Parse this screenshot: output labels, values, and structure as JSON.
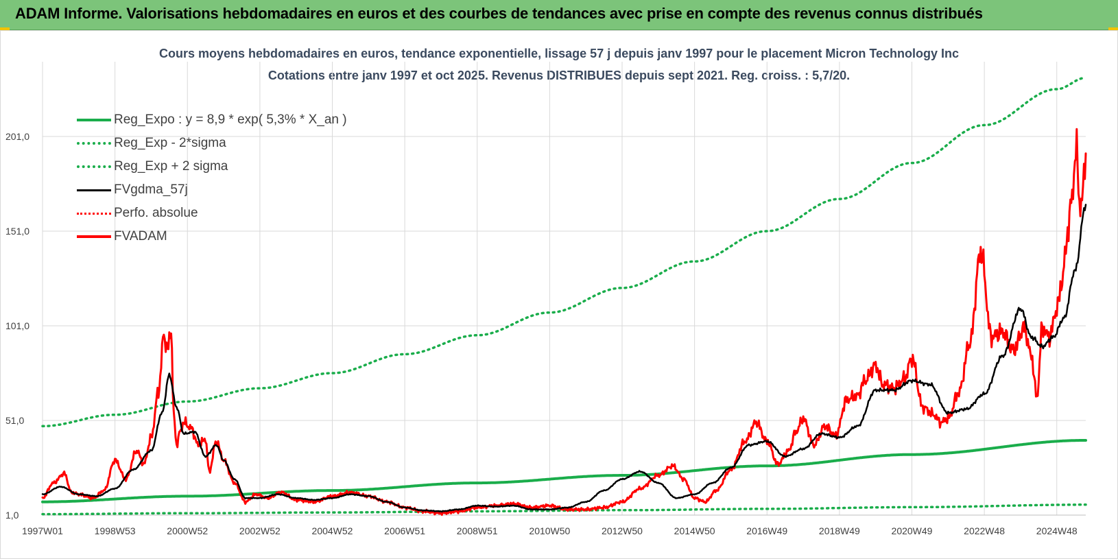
{
  "header": {
    "title": "ADAM Informe. Valorisations hebdomadaires en euros et des courbes de tendances avec prise en compte des revenus connus distribués"
  },
  "colors": {
    "header_bg": "#7cc47a",
    "trend_green": "#1aad4b",
    "series_black": "#000000",
    "series_red": "#ff0000",
    "grid": "#d9d9d9",
    "title": "#3b4a5f"
  },
  "chart_data": {
    "type": "line",
    "title": "Cours moyens hebdomadaires en euros, tendance exponentielle, lissage 57 j depuis janv 1997 pour le placement Micron Technology Inc",
    "subtitle": "Cotations entre janv 1997 et oct 2025. Revenus DISTRIBUES depuis sept 2021. Reg. croiss. : 5,7/20.",
    "xlabel": "",
    "ylabel": "",
    "x_range": [
      1997.0,
      2025.8
    ],
    "ylim": [
      1.0,
      232.0
    ],
    "y_ticks": [
      "1,0",
      "51,0",
      "101,0",
      "151,0",
      "201,0"
    ],
    "y_tick_values": [
      1,
      51,
      101,
      151,
      201
    ],
    "x_ticks": [
      "1997W01",
      "1998W53",
      "2000W52",
      "2002W52",
      "2004W52",
      "2006W51",
      "2008W51",
      "2010W50",
      "2012W50",
      "2014W50",
      "2016W49",
      "2018W49",
      "2020W49",
      "2022W48",
      "2024W48"
    ],
    "x_tick_values": [
      1997.0,
      1999.0,
      2001.0,
      2003.0,
      2005.0,
      2007.0,
      2009.0,
      2011.0,
      2013.0,
      2015.0,
      2017.0,
      2019.0,
      2021.0,
      2023.0,
      2025.0
    ],
    "grid": true,
    "legend_position": "top-left",
    "legend": [
      {
        "label": "Reg_Expo : y = 8,9 * exp( 5,3% *  X_an )",
        "color": "#1aad4b",
        "style": "solid"
      },
      {
        "label": "Reg_Exp - 2*sigma",
        "color": "#1aad4b",
        "style": "dotted"
      },
      {
        "label": "Reg_Exp + 2 sigma",
        "color": "#1aad4b",
        "style": "dotted"
      },
      {
        "label": "FVgdma_57j",
        "color": "#000000",
        "style": "solid"
      },
      {
        "label": "Perfo. absolue",
        "color": "#ff0000",
        "style": "dotted"
      },
      {
        "label": "FVADAM",
        "color": "#ff0000",
        "style": "solid"
      }
    ],
    "series": [
      {
        "name": "Reg_Expo",
        "x": [
          1997.0,
          2001.0,
          2005.0,
          2009.0,
          2013.0,
          2017.0,
          2021.0,
          2025.8
        ],
        "values": [
          8.0,
          11.0,
          14.0,
          18.0,
          22.0,
          27.0,
          33.0,
          40.5
        ]
      },
      {
        "name": "Reg_Exp - 2*sigma",
        "x": [
          1997.0,
          2001.0,
          2005.0,
          2009.0,
          2013.0,
          2017.0,
          2021.0,
          2025.8
        ],
        "values": [
          1.5,
          2.0,
          2.4,
          3.0,
          3.6,
          4.3,
          5.2,
          6.5
        ]
      },
      {
        "name": "Reg_Exp + 2 sigma",
        "x": [
          1997.0,
          1999.0,
          2001.0,
          2003.0,
          2005.0,
          2007.0,
          2009.0,
          2011.0,
          2013.0,
          2015.0,
          2017.0,
          2019.0,
          2021.0,
          2023.0,
          2025.0,
          2025.8
        ],
        "values": [
          48.0,
          54.0,
          61.0,
          68.0,
          76.0,
          86.0,
          96.0,
          108.0,
          121.0,
          135.0,
          151.0,
          168.0,
          187.0,
          207.0,
          226.0,
          232.0
        ]
      },
      {
        "name": "FVgdma_57j",
        "x": [
          1997.0,
          1997.5,
          1998.0,
          1998.5,
          1999.0,
          1999.5,
          2000.0,
          2000.3,
          2000.5,
          2000.7,
          2000.9,
          2001.2,
          2001.5,
          2001.8,
          2002.0,
          2002.3,
          2002.6,
          2003.0,
          2003.5,
          2004.0,
          2004.5,
          2005.0,
          2005.5,
          2006.0,
          2006.5,
          2007.0,
          2007.5,
          2008.0,
          2008.5,
          2009.0,
          2009.5,
          2010.0,
          2010.5,
          2011.0,
          2011.5,
          2012.0,
          2012.5,
          2013.0,
          2013.5,
          2014.0,
          2014.5,
          2015.0,
          2015.5,
          2016.0,
          2016.5,
          2017.0,
          2017.5,
          2018.0,
          2018.5,
          2019.0,
          2019.5,
          2020.0,
          2020.5,
          2021.0,
          2021.5,
          2022.0,
          2022.5,
          2023.0,
          2023.5,
          2024.0,
          2024.3,
          2024.6,
          2024.9,
          2025.2,
          2025.5,
          2025.8
        ],
        "values": [
          12.0,
          16.0,
          12.0,
          11.0,
          15.0,
          25.0,
          35.0,
          55.0,
          75.0,
          58.0,
          44.0,
          45.0,
          32.0,
          38.0,
          30.0,
          20.0,
          10.0,
          10.0,
          12.0,
          10.0,
          9.0,
          10.0,
          12.0,
          11.0,
          8.0,
          5.0,
          3.5,
          3.0,
          4.0,
          6.0,
          5.5,
          6.0,
          4.0,
          4.0,
          5.0,
          8.0,
          14.0,
          20.0,
          24.0,
          18.0,
          10.0,
          12.0,
          18.0,
          26.0,
          38.0,
          40.0,
          32.0,
          36.0,
          44.0,
          42.0,
          48.0,
          67.0,
          67.0,
          72.0,
          70.0,
          55.0,
          57.0,
          65.0,
          85.0,
          110.0,
          95.0,
          90.0,
          95.0,
          105.0,
          130.0,
          165.0
        ]
      },
      {
        "name": "FVADAM",
        "x": [
          1997.0,
          1997.3,
          1997.6,
          1997.8,
          1998.0,
          1998.4,
          1998.7,
          1999.0,
          1999.3,
          1999.6,
          1999.8,
          2000.0,
          2000.2,
          2000.35,
          2000.45,
          2000.55,
          2000.62,
          2000.7,
          2000.8,
          2000.9,
          2001.1,
          2001.3,
          2001.5,
          2001.6,
          2001.8,
          2002.0,
          2002.3,
          2002.6,
          2002.9,
          2003.2,
          2003.6,
          2004.0,
          2004.5,
          2005.0,
          2005.5,
          2006.0,
          2006.5,
          2007.0,
          2007.5,
          2008.0,
          2008.5,
          2009.0,
          2009.5,
          2010.0,
          2010.5,
          2011.0,
          2011.5,
          2012.0,
          2012.5,
          2013.0,
          2013.5,
          2014.0,
          2014.4,
          2014.7,
          2015.0,
          2015.3,
          2015.6,
          2016.0,
          2016.4,
          2016.7,
          2017.0,
          2017.3,
          2017.6,
          2017.8,
          2018.0,
          2018.3,
          2018.6,
          2018.9,
          2019.2,
          2019.5,
          2019.7,
          2020.0,
          2020.2,
          2020.5,
          2020.8,
          2021.0,
          2021.3,
          2021.6,
          2021.8,
          2022.0,
          2022.3,
          2022.6,
          2022.9,
          2023.2,
          2023.5,
          2023.8,
          2024.1,
          2024.3,
          2024.45,
          2024.6,
          2024.8,
          2025.0,
          2025.15,
          2025.3,
          2025.45,
          2025.55,
          2025.65,
          2025.8
        ],
        "values": [
          10.0,
          18.0,
          23.0,
          13.0,
          12.0,
          10.0,
          14.0,
          30.0,
          20.0,
          35.0,
          28.0,
          42.0,
          66.0,
          96.0,
          88.0,
          99.0,
          55.0,
          38.0,
          45.0,
          50.0,
          47.0,
          38.0,
          41.0,
          24.0,
          40.0,
          30.0,
          18.0,
          8.0,
          12.0,
          10.0,
          13.0,
          9.0,
          8.0,
          11.0,
          13.0,
          11.0,
          8.0,
          5.0,
          3.0,
          2.0,
          3.0,
          5.0,
          6.0,
          7.0,
          5.0,
          6.0,
          4.0,
          4.0,
          5.0,
          8.0,
          15.0,
          22.0,
          27.0,
          20.0,
          10.0,
          8.0,
          14.0,
          25.0,
          40.0,
          50.0,
          40.0,
          28.0,
          35.0,
          45.0,
          52.0,
          38.0,
          48.0,
          43.0,
          62.0,
          64.0,
          72.0,
          80.0,
          70.0,
          68.0,
          73.0,
          84.0,
          58.0,
          54.0,
          50.0,
          52.0,
          66.0,
          92.0,
          140.0,
          95.0,
          98.0,
          88.0,
          100.0,
          85.0,
          63.0,
          100.0,
          95.0,
          110.0,
          125.0,
          150.0,
          175.0,
          195.0,
          160.0,
          192.0
        ]
      }
    ]
  }
}
